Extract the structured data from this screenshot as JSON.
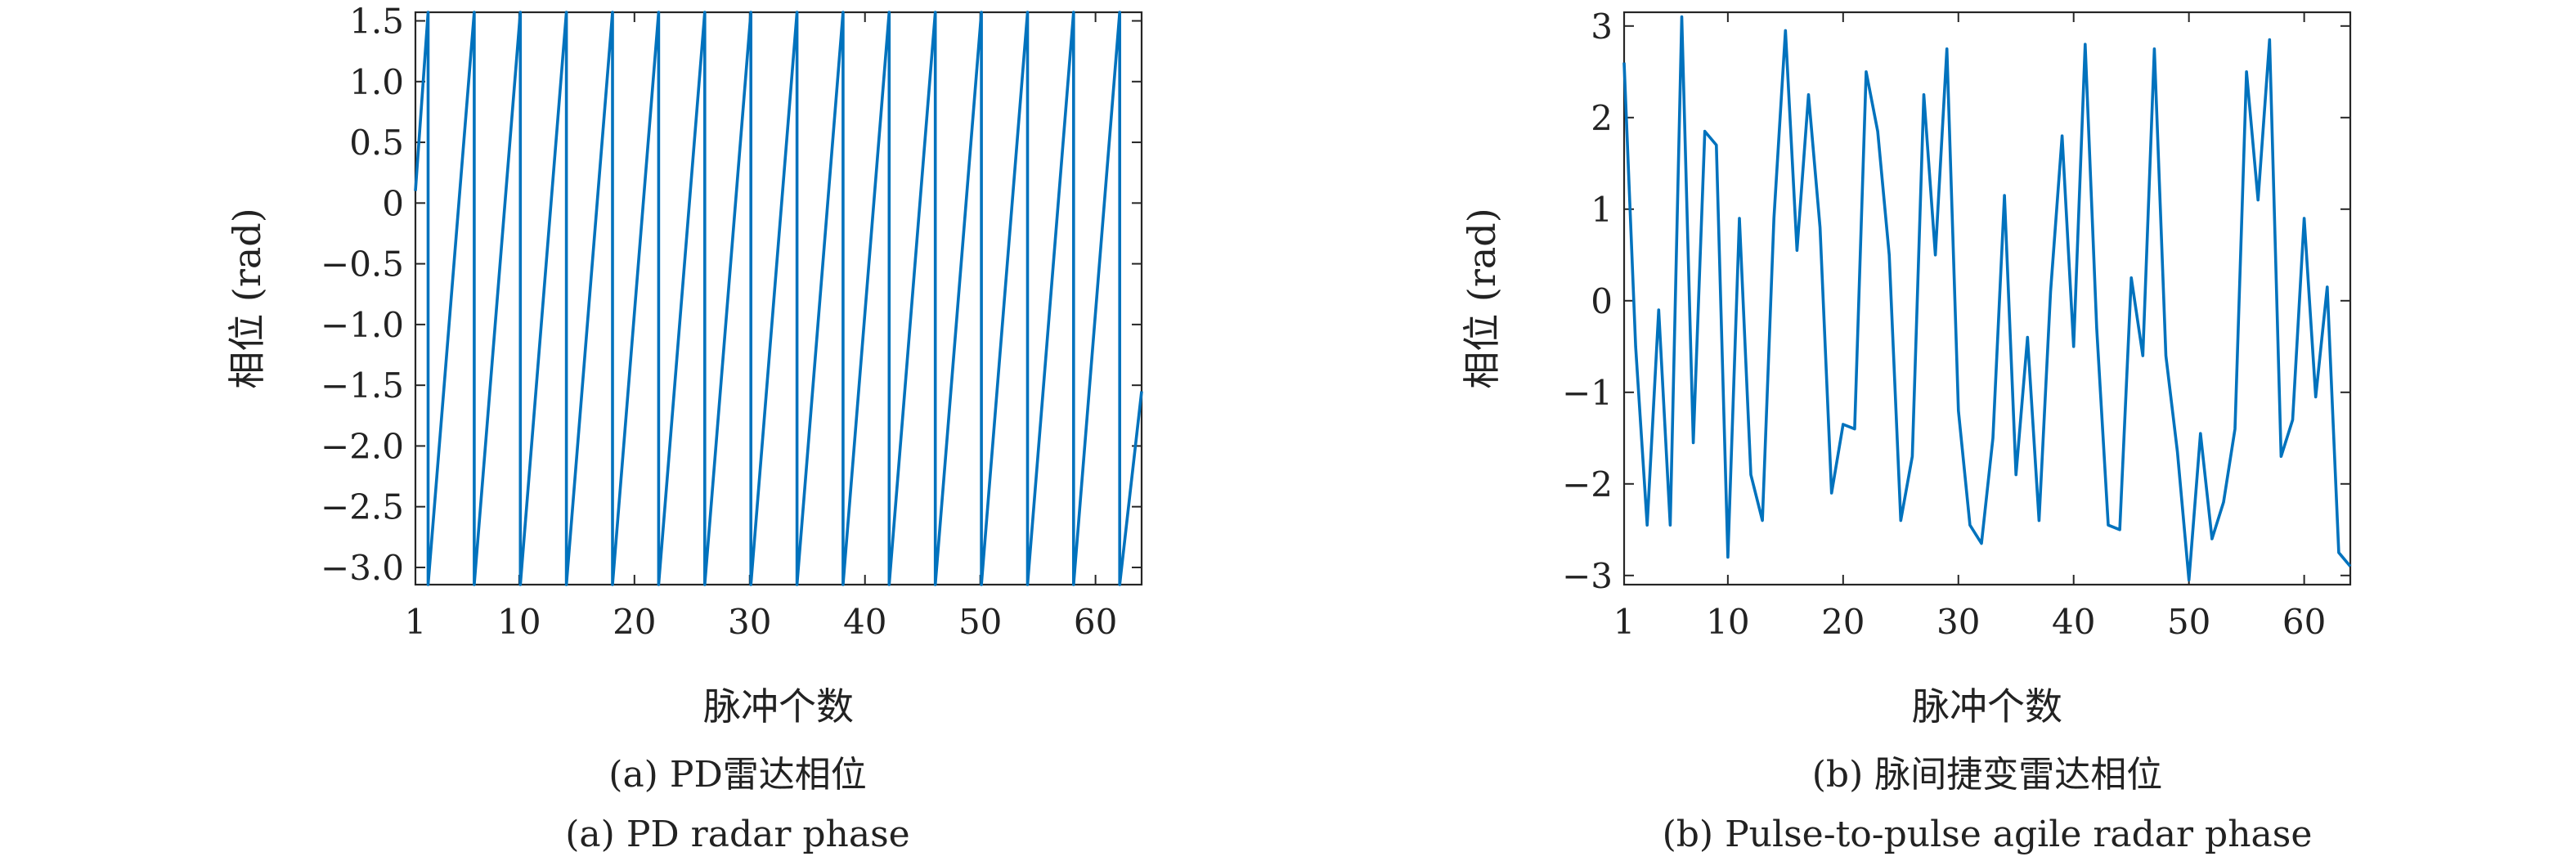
{
  "colors": {
    "line": "#0072BD",
    "axis": "#262626",
    "background": "#ffffff"
  },
  "chart_data": [
    {
      "type": "line",
      "caption_cn": "(a) PD雷达相位",
      "caption_en": "(a) PD radar phase",
      "xlabel": "脉冲个数",
      "ylabel": "相位 (rad)",
      "xlim": [
        1,
        64
      ],
      "ylim": [
        -3.1416,
        1.5708
      ],
      "xticks": [
        1,
        10,
        20,
        30,
        40,
        50,
        60
      ],
      "yticks": [
        1.5,
        1.0,
        0.5,
        0,
        -0.5,
        -1.0,
        -1.5,
        -2.0,
        -2.5,
        -3.0
      ],
      "ytick_labels": [
        "1.5",
        "1.0",
        "0.5",
        "0",
        "−0.5",
        "−1.0",
        "−1.5",
        "−2.0",
        "−2.5",
        "−3.0"
      ],
      "grid": false,
      "series": [
        {
          "x": [
            1,
            2.1,
            2.1,
            6.1,
            6.1,
            10.1,
            10.1,
            14.1,
            14.1,
            18.1,
            18.1,
            22.1,
            22.1,
            26.1,
            26.1,
            30.1,
            30.1,
            34.1,
            34.1,
            38.1,
            38.1,
            42.1,
            42.1,
            46.1,
            46.1,
            50.1,
            50.1,
            54.1,
            54.1,
            58.1,
            58.1,
            62.1,
            62.1,
            64
          ],
          "y": [
            0.1,
            1.5708,
            -3.1416,
            1.5708,
            -3.1416,
            1.5708,
            -3.1416,
            1.5708,
            -3.1416,
            1.5708,
            -3.1416,
            1.5708,
            -3.1416,
            1.5708,
            -3.1416,
            1.5708,
            -3.1416,
            1.5708,
            -3.1416,
            1.5708,
            -3.1416,
            1.5708,
            -3.1416,
            1.5708,
            -3.1416,
            1.5708,
            -3.1416,
            1.5708,
            -3.1416,
            1.5708,
            -3.1416,
            1.5708,
            -3.1416,
            -1.55
          ]
        }
      ]
    },
    {
      "type": "line",
      "caption_cn": "(b) 脉间捷变雷达相位",
      "caption_en": "(b) Pulse-to-pulse agile radar phase",
      "xlabel": "脉冲个数",
      "ylabel": "相位 (rad)",
      "xlim": [
        1,
        64
      ],
      "ylim": [
        -3.1,
        3.15
      ],
      "xticks": [
        1,
        10,
        20,
        30,
        40,
        50,
        60
      ],
      "yticks": [
        3,
        2,
        1,
        0,
        -1,
        -2,
        -3
      ],
      "ytick_labels": [
        "3",
        "2",
        "1",
        "0",
        "−1",
        "−2",
        "−3"
      ],
      "grid": false,
      "series": [
        {
          "x": [
            1,
            2,
            3,
            4,
            5,
            6,
            7,
            8,
            9,
            10,
            11,
            12,
            13,
            14,
            15,
            16,
            17,
            18,
            19,
            20,
            21,
            22,
            23,
            24,
            25,
            26,
            27,
            28,
            29,
            30,
            31,
            32,
            33,
            34,
            35,
            36,
            37,
            38,
            39,
            40,
            41,
            42,
            43,
            44,
            45,
            46,
            47,
            48,
            49,
            50,
            51,
            52,
            53,
            54,
            55,
            56,
            57,
            58,
            59,
            60,
            61,
            62,
            63,
            64
          ],
          "y": [
            2.6,
            -0.5,
            -2.45,
            -0.1,
            -2.45,
            3.1,
            -1.55,
            1.85,
            1.7,
            -2.8,
            0.9,
            -1.9,
            -2.4,
            0.9,
            2.95,
            0.55,
            2.25,
            0.8,
            -2.1,
            -1.35,
            -1.4,
            2.5,
            1.85,
            0.5,
            -2.4,
            -1.7,
            2.25,
            0.5,
            2.75,
            -1.2,
            -2.45,
            -2.65,
            -1.5,
            1.15,
            -1.9,
            -0.4,
            -2.4,
            0.1,
            1.8,
            -0.5,
            2.8,
            -0.3,
            -2.45,
            -2.5,
            0.25,
            -0.6,
            2.75,
            -0.6,
            -1.65,
            -3.05,
            -1.45,
            -2.6,
            -2.2,
            -1.4,
            2.5,
            1.1,
            2.85,
            -1.7,
            -1.3,
            0.9,
            -1.05,
            0.15,
            -2.75,
            -2.9
          ]
        }
      ]
    }
  ]
}
